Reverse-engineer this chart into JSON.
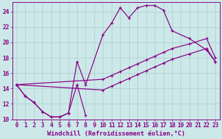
{
  "xlabel": "Windchill (Refroidissement éolien,°C)",
  "background_color": "#cce8e8",
  "grid_color": "#aacccc",
  "line_color": "#880088",
  "xlim": [
    -0.5,
    23.5
  ],
  "ylim": [
    10,
    25.2
  ],
  "yticks": [
    10,
    12,
    14,
    16,
    18,
    20,
    22,
    24
  ],
  "xticks": [
    0,
    1,
    2,
    3,
    4,
    5,
    6,
    7,
    8,
    9,
    10,
    11,
    12,
    13,
    14,
    15,
    16,
    17,
    18,
    19,
    20,
    21,
    22,
    23
  ],
  "line1_x": [
    0,
    1,
    2,
    3,
    4,
    5,
    6,
    7,
    8
  ],
  "line1_y": [
    14.5,
    13.0,
    12.2,
    11.0,
    10.3,
    10.3,
    10.8,
    14.5,
    10.5
  ],
  "line2_x": [
    0,
    1,
    2,
    3,
    4,
    5,
    6,
    7,
    8,
    10,
    11,
    12,
    13,
    14,
    15,
    16,
    17,
    18,
    20,
    22,
    23
  ],
  "line2_y": [
    14.5,
    13.0,
    12.2,
    11.0,
    10.3,
    10.3,
    10.8,
    17.5,
    14.5,
    21.0,
    22.5,
    24.5,
    23.2,
    24.5,
    24.8,
    24.8,
    24.2,
    21.5,
    20.5,
    19.0,
    17.5
  ],
  "line3_x": [
    0,
    10,
    11,
    12,
    13,
    14,
    15,
    16,
    17,
    18,
    20,
    22,
    23
  ],
  "line3_y": [
    14.5,
    15.2,
    15.7,
    16.2,
    16.7,
    17.2,
    17.7,
    18.2,
    18.7,
    19.2,
    19.8,
    20.5,
    18.0
  ],
  "line4_x": [
    0,
    10,
    11,
    12,
    13,
    14,
    15,
    16,
    17,
    18,
    20,
    22,
    23
  ],
  "line4_y": [
    14.5,
    13.8,
    14.3,
    14.8,
    15.3,
    15.8,
    16.3,
    16.8,
    17.3,
    17.8,
    18.5,
    19.2,
    17.5
  ],
  "fontsize_label": 6.5,
  "fontsize_tick": 6
}
